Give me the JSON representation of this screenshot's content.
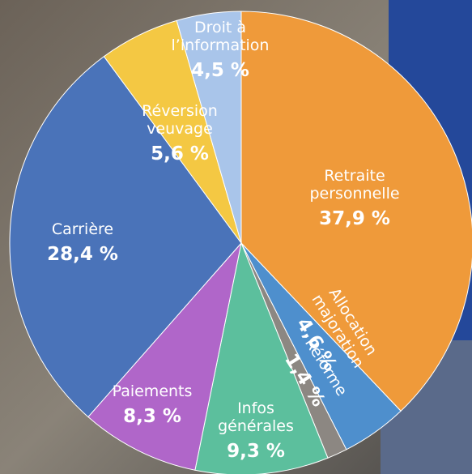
{
  "chart_data": {
    "type": "pie",
    "categories": [
      "Retraite personnelle",
      "Allocation majoration",
      "Réforme",
      "Infos générales",
      "Paiements",
      "Carrière",
      "Réversion veuvage",
      "Droit à l’information"
    ],
    "values": [
      37.9,
      4.6,
      1.4,
      9.3,
      8.3,
      28.4,
      5.6,
      4.5
    ],
    "value_labels": [
      "37,9 %",
      "4,6 %",
      "1,4 %",
      "9,3 %",
      "8,3 %",
      "28,4 %",
      "5,6 %",
      "4,5 %"
    ],
    "colors": [
      "#ef9a3a",
      "#4e8fcd",
      "#8c8782",
      "#5cbf9d",
      "#b066c9",
      "#4a73b9",
      "#f4c843",
      "#a9c5ea"
    ]
  }
}
